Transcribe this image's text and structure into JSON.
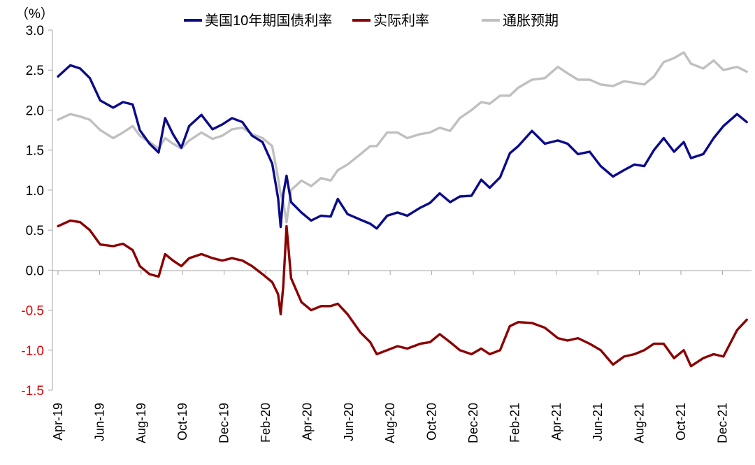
{
  "chart_data": {
    "type": "line",
    "unit_label": "（%）",
    "ylim": [
      -1.5,
      3.0
    ],
    "y_ticks": [
      "3.0",
      "2.5",
      "2.0",
      "1.5",
      "1.0",
      "0.5",
      "0.0",
      "-0.5",
      "-1.0",
      "-1.5"
    ],
    "x_ticks": [
      "Apr-19",
      "Jun-19",
      "Aug-19",
      "Oct-19",
      "Dec-19",
      "Feb-20",
      "Apr-20",
      "Jun-20",
      "Aug-20",
      "Oct-20",
      "Dec-20",
      "Feb-21",
      "Apr-21",
      "Jun-21",
      "Aug-21",
      "Oct-21",
      "Dec-21"
    ],
    "x_range": [
      "2019-04-01",
      "2022-02-28"
    ],
    "grid": false,
    "legend_position": "top",
    "series": [
      {
        "name": "美国10年期国债利率",
        "color": "#0b0b8a",
        "points": [
          [
            "2019-04-01",
            2.42
          ],
          [
            "2019-04-20",
            2.56
          ],
          [
            "2019-05-05",
            2.52
          ],
          [
            "2019-05-20",
            2.4
          ],
          [
            "2019-06-05",
            2.12
          ],
          [
            "2019-06-25",
            2.03
          ],
          [
            "2019-07-10",
            2.1
          ],
          [
            "2019-07-25",
            2.07
          ],
          [
            "2019-08-05",
            1.75
          ],
          [
            "2019-08-20",
            1.58
          ],
          [
            "2019-09-03",
            1.47
          ],
          [
            "2019-09-13",
            1.9
          ],
          [
            "2019-09-25",
            1.7
          ],
          [
            "2019-10-08",
            1.53
          ],
          [
            "2019-10-20",
            1.8
          ],
          [
            "2019-11-08",
            1.94
          ],
          [
            "2019-11-25",
            1.76
          ],
          [
            "2019-12-10",
            1.82
          ],
          [
            "2019-12-25",
            1.9
          ],
          [
            "2020-01-10",
            1.85
          ],
          [
            "2020-01-25",
            1.68
          ],
          [
            "2020-02-10",
            1.6
          ],
          [
            "2020-02-25",
            1.33
          ],
          [
            "2020-03-05",
            0.9
          ],
          [
            "2020-03-09",
            0.54
          ],
          [
            "2020-03-13",
            0.95
          ],
          [
            "2020-03-18",
            1.18
          ],
          [
            "2020-03-25",
            0.85
          ],
          [
            "2020-04-10",
            0.72
          ],
          [
            "2020-04-25",
            0.62
          ],
          [
            "2020-05-10",
            0.68
          ],
          [
            "2020-05-25",
            0.67
          ],
          [
            "2020-06-05",
            0.89
          ],
          [
            "2020-06-20",
            0.7
          ],
          [
            "2020-07-10",
            0.63
          ],
          [
            "2020-07-25",
            0.58
          ],
          [
            "2020-08-04",
            0.52
          ],
          [
            "2020-08-20",
            0.68
          ],
          [
            "2020-09-05",
            0.72
          ],
          [
            "2020-09-20",
            0.68
          ],
          [
            "2020-10-10",
            0.78
          ],
          [
            "2020-10-25",
            0.84
          ],
          [
            "2020-11-09",
            0.96
          ],
          [
            "2020-11-25",
            0.85
          ],
          [
            "2020-12-10",
            0.92
          ],
          [
            "2020-12-28",
            0.93
          ],
          [
            "2021-01-12",
            1.13
          ],
          [
            "2021-01-25",
            1.03
          ],
          [
            "2021-02-10",
            1.16
          ],
          [
            "2021-02-25",
            1.46
          ],
          [
            "2021-03-10",
            1.55
          ],
          [
            "2021-03-31",
            1.74
          ],
          [
            "2021-04-20",
            1.58
          ],
          [
            "2021-05-10",
            1.62
          ],
          [
            "2021-05-25",
            1.58
          ],
          [
            "2021-06-10",
            1.45
          ],
          [
            "2021-06-28",
            1.48
          ],
          [
            "2021-07-15",
            1.3
          ],
          [
            "2021-08-03",
            1.17
          ],
          [
            "2021-08-20",
            1.25
          ],
          [
            "2021-09-05",
            1.32
          ],
          [
            "2021-09-20",
            1.3
          ],
          [
            "2021-10-05",
            1.5
          ],
          [
            "2021-10-20",
            1.65
          ],
          [
            "2021-11-05",
            1.48
          ],
          [
            "2021-11-20",
            1.6
          ],
          [
            "2021-12-01",
            1.4
          ],
          [
            "2021-12-20",
            1.45
          ],
          [
            "2022-01-05",
            1.65
          ],
          [
            "2022-01-20",
            1.8
          ],
          [
            "2022-02-10",
            1.95
          ],
          [
            "2022-02-25",
            1.85
          ]
        ]
      },
      {
        "name": "实际利率",
        "color": "#8b0000",
        "points": [
          [
            "2019-04-01",
            0.55
          ],
          [
            "2019-04-20",
            0.62
          ],
          [
            "2019-05-05",
            0.6
          ],
          [
            "2019-05-20",
            0.5
          ],
          [
            "2019-06-05",
            0.32
          ],
          [
            "2019-06-25",
            0.3
          ],
          [
            "2019-07-10",
            0.33
          ],
          [
            "2019-07-25",
            0.25
          ],
          [
            "2019-08-05",
            0.05
          ],
          [
            "2019-08-20",
            -0.05
          ],
          [
            "2019-09-03",
            -0.08
          ],
          [
            "2019-09-13",
            0.2
          ],
          [
            "2019-09-25",
            0.12
          ],
          [
            "2019-10-08",
            0.05
          ],
          [
            "2019-10-20",
            0.15
          ],
          [
            "2019-11-08",
            0.2
          ],
          [
            "2019-11-25",
            0.15
          ],
          [
            "2019-12-10",
            0.12
          ],
          [
            "2019-12-25",
            0.15
          ],
          [
            "2020-01-10",
            0.12
          ],
          [
            "2020-01-25",
            0.05
          ],
          [
            "2020-02-10",
            -0.05
          ],
          [
            "2020-02-25",
            -0.15
          ],
          [
            "2020-03-05",
            -0.3
          ],
          [
            "2020-03-09",
            -0.55
          ],
          [
            "2020-03-13",
            -0.2
          ],
          [
            "2020-03-18",
            0.55
          ],
          [
            "2020-03-25",
            -0.1
          ],
          [
            "2020-04-10",
            -0.4
          ],
          [
            "2020-04-25",
            -0.5
          ],
          [
            "2020-05-10",
            -0.45
          ],
          [
            "2020-05-25",
            -0.45
          ],
          [
            "2020-06-05",
            -0.42
          ],
          [
            "2020-06-20",
            -0.55
          ],
          [
            "2020-07-10",
            -0.78
          ],
          [
            "2020-07-25",
            -0.9
          ],
          [
            "2020-08-04",
            -1.05
          ],
          [
            "2020-08-20",
            -1.0
          ],
          [
            "2020-09-05",
            -0.95
          ],
          [
            "2020-09-20",
            -0.98
          ],
          [
            "2020-10-10",
            -0.92
          ],
          [
            "2020-10-25",
            -0.9
          ],
          [
            "2020-11-09",
            -0.8
          ],
          [
            "2020-11-25",
            -0.9
          ],
          [
            "2020-12-10",
            -1.0
          ],
          [
            "2020-12-28",
            -1.05
          ],
          [
            "2021-01-12",
            -0.98
          ],
          [
            "2021-01-25",
            -1.05
          ],
          [
            "2021-02-10",
            -1.0
          ],
          [
            "2021-02-25",
            -0.7
          ],
          [
            "2021-03-10",
            -0.65
          ],
          [
            "2021-03-31",
            -0.66
          ],
          [
            "2021-04-20",
            -0.72
          ],
          [
            "2021-05-10",
            -0.85
          ],
          [
            "2021-05-25",
            -0.88
          ],
          [
            "2021-06-10",
            -0.85
          ],
          [
            "2021-06-28",
            -0.92
          ],
          [
            "2021-07-15",
            -1.0
          ],
          [
            "2021-08-03",
            -1.18
          ],
          [
            "2021-08-20",
            -1.08
          ],
          [
            "2021-09-05",
            -1.05
          ],
          [
            "2021-09-20",
            -1.0
          ],
          [
            "2021-10-05",
            -0.92
          ],
          [
            "2021-10-20",
            -0.92
          ],
          [
            "2021-11-05",
            -1.1
          ],
          [
            "2021-11-20",
            -1.0
          ],
          [
            "2021-12-01",
            -1.2
          ],
          [
            "2021-12-20",
            -1.1
          ],
          [
            "2022-01-05",
            -1.05
          ],
          [
            "2022-01-20",
            -1.08
          ],
          [
            "2022-02-10",
            -0.75
          ],
          [
            "2022-02-25",
            -0.62
          ]
        ]
      },
      {
        "name": "通胀预期",
        "color": "#c0c0c0",
        "points": [
          [
            "2019-04-01",
            1.88
          ],
          [
            "2019-04-20",
            1.95
          ],
          [
            "2019-05-05",
            1.92
          ],
          [
            "2019-05-20",
            1.88
          ],
          [
            "2019-06-05",
            1.75
          ],
          [
            "2019-06-25",
            1.65
          ],
          [
            "2019-07-10",
            1.72
          ],
          [
            "2019-07-25",
            1.8
          ],
          [
            "2019-08-05",
            1.68
          ],
          [
            "2019-08-20",
            1.6
          ],
          [
            "2019-09-03",
            1.52
          ],
          [
            "2019-09-13",
            1.65
          ],
          [
            "2019-09-25",
            1.58
          ],
          [
            "2019-10-08",
            1.52
          ],
          [
            "2019-10-20",
            1.62
          ],
          [
            "2019-11-08",
            1.72
          ],
          [
            "2019-11-25",
            1.64
          ],
          [
            "2019-12-10",
            1.68
          ],
          [
            "2019-12-25",
            1.76
          ],
          [
            "2020-01-10",
            1.78
          ],
          [
            "2020-01-25",
            1.7
          ],
          [
            "2020-02-10",
            1.65
          ],
          [
            "2020-02-25",
            1.55
          ],
          [
            "2020-03-05",
            1.15
          ],
          [
            "2020-03-09",
            0.95
          ],
          [
            "2020-03-13",
            0.85
          ],
          [
            "2020-03-18",
            0.6
          ],
          [
            "2020-03-25",
            1.0
          ],
          [
            "2020-04-10",
            1.12
          ],
          [
            "2020-04-25",
            1.05
          ],
          [
            "2020-05-10",
            1.15
          ],
          [
            "2020-05-25",
            1.12
          ],
          [
            "2020-06-05",
            1.25
          ],
          [
            "2020-06-20",
            1.32
          ],
          [
            "2020-07-10",
            1.45
          ],
          [
            "2020-07-25",
            1.55
          ],
          [
            "2020-08-04",
            1.55
          ],
          [
            "2020-08-20",
            1.72
          ],
          [
            "2020-09-05",
            1.72
          ],
          [
            "2020-09-20",
            1.65
          ],
          [
            "2020-10-10",
            1.7
          ],
          [
            "2020-10-25",
            1.72
          ],
          [
            "2020-11-09",
            1.78
          ],
          [
            "2020-11-25",
            1.74
          ],
          [
            "2020-12-10",
            1.9
          ],
          [
            "2020-12-28",
            2.0
          ],
          [
            "2021-01-12",
            2.1
          ],
          [
            "2021-01-25",
            2.08
          ],
          [
            "2021-02-10",
            2.18
          ],
          [
            "2021-02-25",
            2.18
          ],
          [
            "2021-03-10",
            2.28
          ],
          [
            "2021-03-31",
            2.38
          ],
          [
            "2021-04-20",
            2.4
          ],
          [
            "2021-05-10",
            2.54
          ],
          [
            "2021-05-25",
            2.46
          ],
          [
            "2021-06-10",
            2.38
          ],
          [
            "2021-06-28",
            2.38
          ],
          [
            "2021-07-15",
            2.32
          ],
          [
            "2021-08-03",
            2.3
          ],
          [
            "2021-08-20",
            2.36
          ],
          [
            "2021-09-05",
            2.34
          ],
          [
            "2021-09-20",
            2.32
          ],
          [
            "2021-10-05",
            2.42
          ],
          [
            "2021-10-20",
            2.6
          ],
          [
            "2021-11-05",
            2.65
          ],
          [
            "2021-11-20",
            2.72
          ],
          [
            "2021-12-01",
            2.58
          ],
          [
            "2021-12-20",
            2.52
          ],
          [
            "2022-01-05",
            2.62
          ],
          [
            "2022-01-20",
            2.5
          ],
          [
            "2022-02-10",
            2.54
          ],
          [
            "2022-02-25",
            2.48
          ]
        ]
      }
    ]
  }
}
